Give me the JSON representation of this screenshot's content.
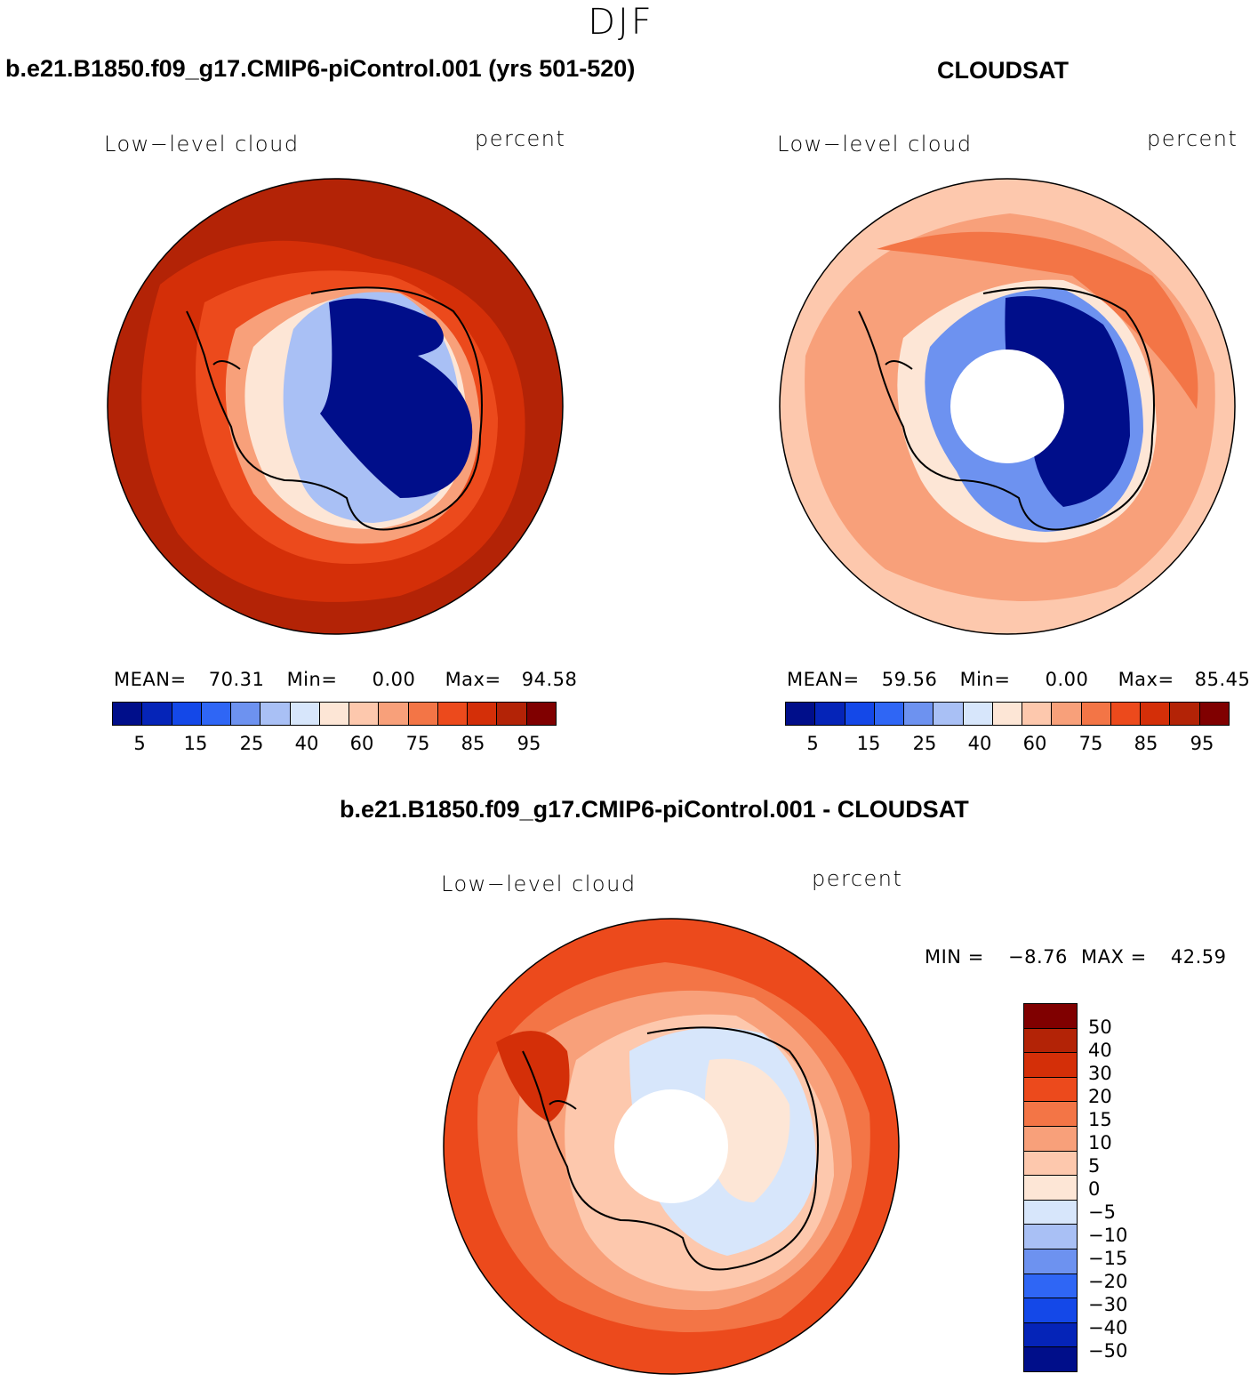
{
  "season": "DJF",
  "panels": [
    {
      "title": "b.e21.B1850.f09_g17.CMIP6-piControl.001 (yrs 501-520)",
      "variable": "Low−level cloud",
      "units": "percent",
      "stats": {
        "mean_label": "MEAN=",
        "mean": "70.31",
        "min_label": "Min=",
        "min": "0.00",
        "max_label": "Max=",
        "max": "94.58"
      }
    },
    {
      "title": "CLOUDSAT",
      "variable": "Low−level cloud",
      "units": "percent",
      "stats": {
        "mean_label": "MEAN=",
        "mean": "59.56",
        "min_label": "Min=",
        "min": "0.00",
        "max_label": "Max=",
        "max": "85.45"
      }
    }
  ],
  "diff_panel": {
    "title": "b.e21.B1850.f09_g17.CMIP6-piControl.001 - CLOUDSAT",
    "variable": "Low−level cloud",
    "units": "percent",
    "minmax": {
      "min_label": "MIN =",
      "min": "−8.76",
      "max_label": "MAX =",
      "max": "42.59"
    }
  },
  "abs_colorbar": {
    "colors": [
      "#000e8a",
      "#0524b8",
      "#1448e8",
      "#2f66f5",
      "#6d92f0",
      "#a9c0f5",
      "#d7e6fb",
      "#fde6d6",
      "#fdc8ad",
      "#f8a07a",
      "#f37546",
      "#ec4a1c",
      "#d42f08",
      "#b32306",
      "#800000"
    ],
    "labels": [
      "5",
      "15",
      "25",
      "40",
      "60",
      "75",
      "85",
      "95"
    ]
  },
  "diff_colorbar": {
    "colors_top_to_bottom": [
      "#800000",
      "#b32306",
      "#d42f08",
      "#ec4a1c",
      "#f37546",
      "#f8a07a",
      "#fdc8ad",
      "#fde6d6",
      "#d7e6fb",
      "#a9c0f5",
      "#6d92f0",
      "#2f66f5",
      "#1448e8",
      "#0524b8",
      "#000e8a"
    ],
    "labels_top_to_bottom": [
      "50",
      "40",
      "30",
      "20",
      "15",
      "10",
      "5",
      "0",
      "−5",
      "−10",
      "−15",
      "−20",
      "−30",
      "−40",
      "−50"
    ]
  },
  "map_fills": {
    "panel1": {
      "outer": "#b32306",
      "mid": "#d42f08",
      "ring1": "#ec4a1c",
      "ring2": "#f8a07a",
      "ring3": "#fde6d6",
      "ice": "#a9c0f5",
      "core": "#000e8a"
    },
    "panel2": {
      "outer": "#fdc8ad",
      "mid": "#f8a07a",
      "ring1": "#f37546",
      "ring2": "#fde6d6",
      "ice": "#6d92f0",
      "core": "#000e8a"
    },
    "panel3": {
      "outer": "#ec4a1c",
      "mid": "#f37546",
      "ring1": "#f8a07a",
      "ring2": "#fdc8ad",
      "ice": "#d7e6fb",
      "core": "#fde6d6"
    }
  }
}
